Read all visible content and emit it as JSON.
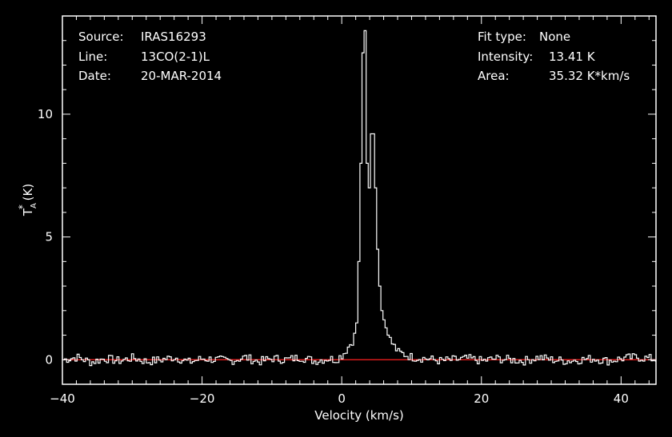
{
  "info": {
    "source_label": "Source:",
    "source_value": "IRAS16293",
    "line_label": "Line:",
    "line_value": "13CO(2-1)L",
    "date_label": "Date:",
    "date_value": "20-MAR-2014",
    "fit_label": "Fit type:",
    "fit_value": "None",
    "intensity_label": "Intensity:",
    "intensity_value": "13.41 K",
    "area_label": "Area:",
    "area_value": "35.32 K*km/s"
  },
  "colors": {
    "background": "#000000",
    "spectrum": "#ffffff",
    "baseline": "#ff2020"
  },
  "chart_data": {
    "type": "line",
    "xlabel": "Velocity (km/s)",
    "ylabel": "T*A (K)",
    "ylabel_parts": {
      "main": "T",
      "sub": "A",
      "sup": "*",
      "unit": " (K)"
    },
    "xlim": [
      -40,
      45
    ],
    "ylim": [
      -1,
      14
    ],
    "x_ticks": [
      -40,
      -20,
      0,
      20,
      40
    ],
    "x_tick_labels": [
      "−40",
      "−20",
      "0",
      "20",
      "40"
    ],
    "y_ticks": [
      0,
      5,
      10
    ],
    "y_tick_labels": [
      "0",
      "5",
      "10"
    ],
    "baseline": 0,
    "step": 0.3,
    "series": [
      {
        "x": [
          -40,
          -38,
          -36,
          -34,
          -32,
          -30,
          -28,
          -26,
          -24,
          -22,
          -20,
          -18,
          -16,
          -14,
          -12,
          -10,
          -8,
          -6,
          -4,
          -2,
          -1,
          -0.5,
          0,
          0.5,
          1,
          1.5,
          2,
          2.3,
          2.6,
          2.9,
          3.2,
          3.4,
          3.6,
          3.8,
          4.0,
          4.2,
          4.4,
          4.6,
          4.8,
          5.0,
          5.3,
          5.6,
          6.0,
          6.5,
          7.0,
          7.5,
          8.0,
          9.0,
          10,
          12,
          14,
          16,
          18,
          20,
          22,
          24,
          26,
          28,
          30,
          32,
          34,
          36,
          38,
          40,
          42,
          44,
          45
        ],
        "y": [
          0.0,
          0.1,
          -0.1,
          0.05,
          -0.05,
          0.08,
          -0.08,
          0.0,
          0.1,
          -0.1,
          0.05,
          0.0,
          -0.05,
          0.1,
          -0.08,
          0.05,
          0.0,
          0.1,
          -0.05,
          0.05,
          0.0,
          0.1,
          0.2,
          0.4,
          0.6,
          0.8,
          1.5,
          4.0,
          8.0,
          12.5,
          13.4,
          10.0,
          6.0,
          7.0,
          8.5,
          9.9,
          9.2,
          8.0,
          6.0,
          4.5,
          3.0,
          2.0,
          1.5,
          1.0,
          0.7,
          0.5,
          0.3,
          0.2,
          0.1,
          0.05,
          -0.05,
          0.0,
          0.05,
          -0.05,
          0.05,
          0.0,
          -0.05,
          0.1,
          0.0,
          -0.05,
          0.0,
          0.05,
          -0.05,
          0.05,
          0.1,
          0.05,
          0.0
        ]
      }
    ]
  }
}
